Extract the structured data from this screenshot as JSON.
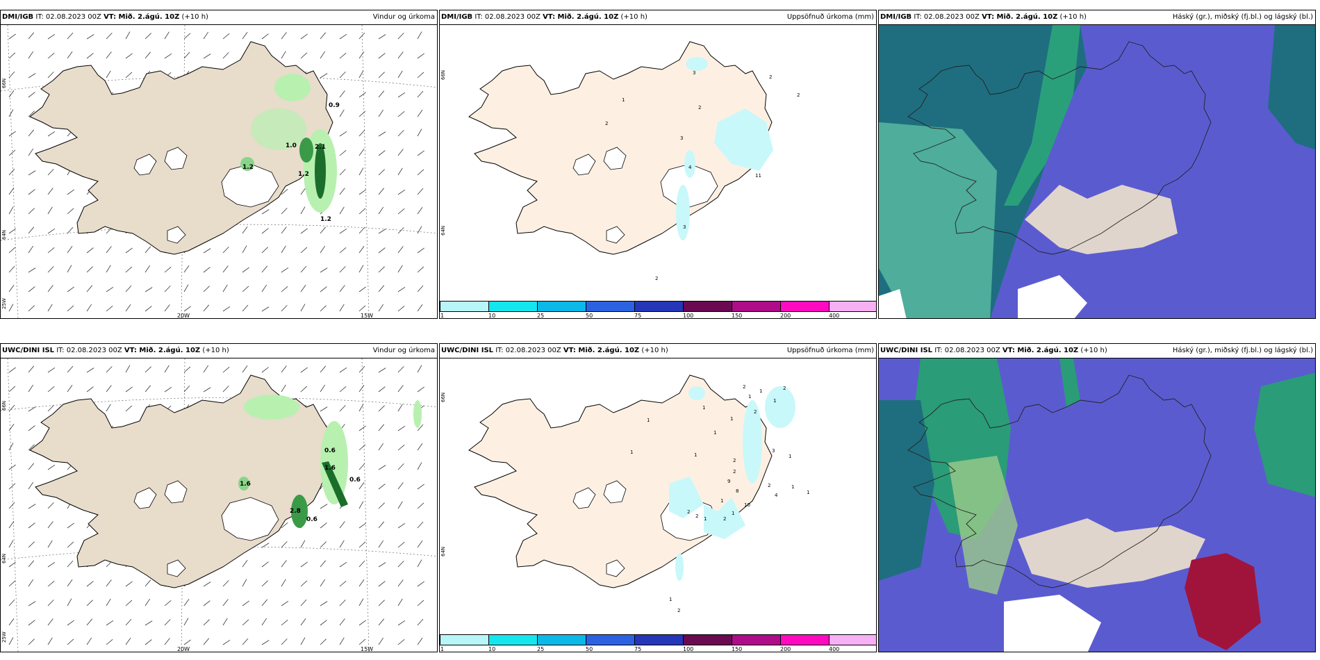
{
  "headers": {
    "p1": {
      "model": "DMI/IGB",
      "it": " IT: 02.08.2023 00Z ",
      "vt": "VT: Mið. 2.ágú. 10Z",
      "lead": " (+10 h)",
      "title": "Vindur og úrkoma"
    },
    "p2": {
      "model": "DMI/IGB",
      "it": " IT: 02.08.2023 00Z ",
      "vt": "VT: Mið. 2.ágú. 10Z",
      "lead": " (+10 h)",
      "title": "Uppsöfnuð úrkoma (mm)"
    },
    "p3": {
      "model": "DMI/IGB",
      "it": " IT: 02.08.2023 00Z ",
      "vt": "VT: Mið. 2.ágú. 10Z",
      "lead": " (+10 h)",
      "title": "Háský (gr.), miðský (fj.bl.) og lágský (bl.)"
    },
    "p4": {
      "model": "UWC/DINI ISL",
      "it": " IT: 02.08.2023 00Z ",
      "vt": "VT: Mið. 2.ágú. 10Z",
      "lead": " (+10 h)",
      "title": "Vindur og úrkoma"
    },
    "p5": {
      "model": "UWC/DINI ISL",
      "it": " IT: 02.08.2023 00Z ",
      "vt": "VT: Mið. 2.ágú. 10Z",
      "lead": " (+10 h)",
      "title": "Uppsöfnuð úrkoma (mm)"
    },
    "p6": {
      "model": "UWC/DINI ISL",
      "it": " IT: 02.08.2023 00Z ",
      "vt": "VT: Mið. 2.ágú. 10Z",
      "lead": " (+10 h)",
      "title": "Háský (gr.), miðský (fj.bl.) og lágský (bl.)"
    }
  },
  "axes": {
    "lon_w20": "20W",
    "lon_w15": "15W",
    "lat_66": "66N",
    "lat_64": "64N",
    "lon_25": "25W"
  },
  "legend": {
    "labels": [
      "1",
      "10",
      "25",
      "50",
      "75",
      "100",
      "150",
      "200",
      "400"
    ],
    "colors": [
      "#b8f5f8",
      "#14e6ee",
      "#0cb8e8",
      "#2c62e2",
      "#2636b8",
      "#6a0a50",
      "#ae0c88",
      "#ff0ac0",
      "#f6b0f4"
    ]
  },
  "wind_labels_top": [
    "0.9",
    "1.0",
    "2.1",
    "1.2",
    "1.2",
    "1.2"
  ],
  "wind_labels_bottom": [
    "0.6",
    "1.6",
    "0.6",
    "1.6",
    "2.8",
    "0.6"
  ],
  "precip_labels_top": [
    "3",
    "2",
    "2",
    "1",
    "2",
    "2",
    "3",
    "4",
    "11",
    "3",
    "2"
  ],
  "precip_labels_bottom": [
    "2",
    "1",
    "1",
    "1",
    "2",
    "1",
    "1",
    "1",
    "2",
    "1",
    "3",
    "1",
    "2",
    "2",
    "9",
    "8",
    "2",
    "4",
    "1",
    "1",
    "1",
    "1",
    "1",
    "2",
    "10",
    "1",
    "2",
    "1",
    "2",
    "1",
    "2"
  ],
  "colors": {
    "land": "#e8dccb",
    "cream": "#fdf0e2",
    "green_light": "#b8f0b0",
    "green_dark": "#1a6e2a",
    "cloud_high": "#5b5bd0",
    "cloud_mid": "#2a9c78",
    "cloud_low": "#1e6e80",
    "cyan_precip": "#c8f8fa"
  }
}
